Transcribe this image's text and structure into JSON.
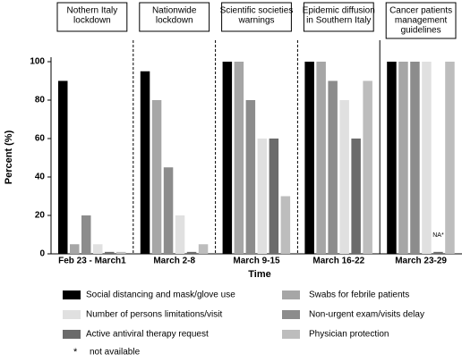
{
  "chart_data": {
    "type": "bar",
    "x_label": "Time",
    "y_label": "Percent  (%)",
    "categories": [
      "Feb 23 - March1",
      "March 2-8",
      "March 9-15",
      "March 16-22",
      "March 23-29"
    ],
    "periods": [
      [
        "Nothern Italy",
        "lockdown"
      ],
      [
        "Nationwide",
        "lockdown"
      ],
      [
        "Scientific societies",
        "warnings"
      ],
      [
        "Epidemic diffusion",
        "in Southern Italy"
      ],
      [
        "Cancer patients",
        "management",
        "guidelines"
      ]
    ],
    "series": [
      {
        "name": "Social distancing and mask/glove use",
        "color": "#000000",
        "values": [
          90,
          95,
          100,
          100,
          100
        ]
      },
      {
        "name": "Swabs for febrile patients",
        "color": "#a6a6a6",
        "values": [
          5,
          80,
          100,
          100,
          100
        ]
      },
      {
        "name": "Non-urgent exam/visits delay",
        "color": "#8c8c8c",
        "values": [
          20,
          45,
          80,
          90,
          100
        ]
      },
      {
        "name": "Number of persons limitations/visit",
        "color": "#e0e0e0",
        "values": [
          5,
          20,
          60,
          80,
          100
        ]
      },
      {
        "name": "Active antiviral therapy request",
        "color": "#6b6b6b",
        "values": [
          1,
          1,
          60,
          60,
          1
        ]
      },
      {
        "name": "Physician protection",
        "color": "#bdbdbd",
        "values": [
          1,
          5,
          30,
          90,
          100
        ]
      }
    ],
    "annotations": [
      {
        "text": "NA*"
      }
    ],
    "footnote": {
      "symbol": "*",
      "text": "not available"
    },
    "ylim": [
      0,
      100
    ],
    "yticks": [
      0,
      20,
      40,
      60,
      80,
      100
    ]
  }
}
